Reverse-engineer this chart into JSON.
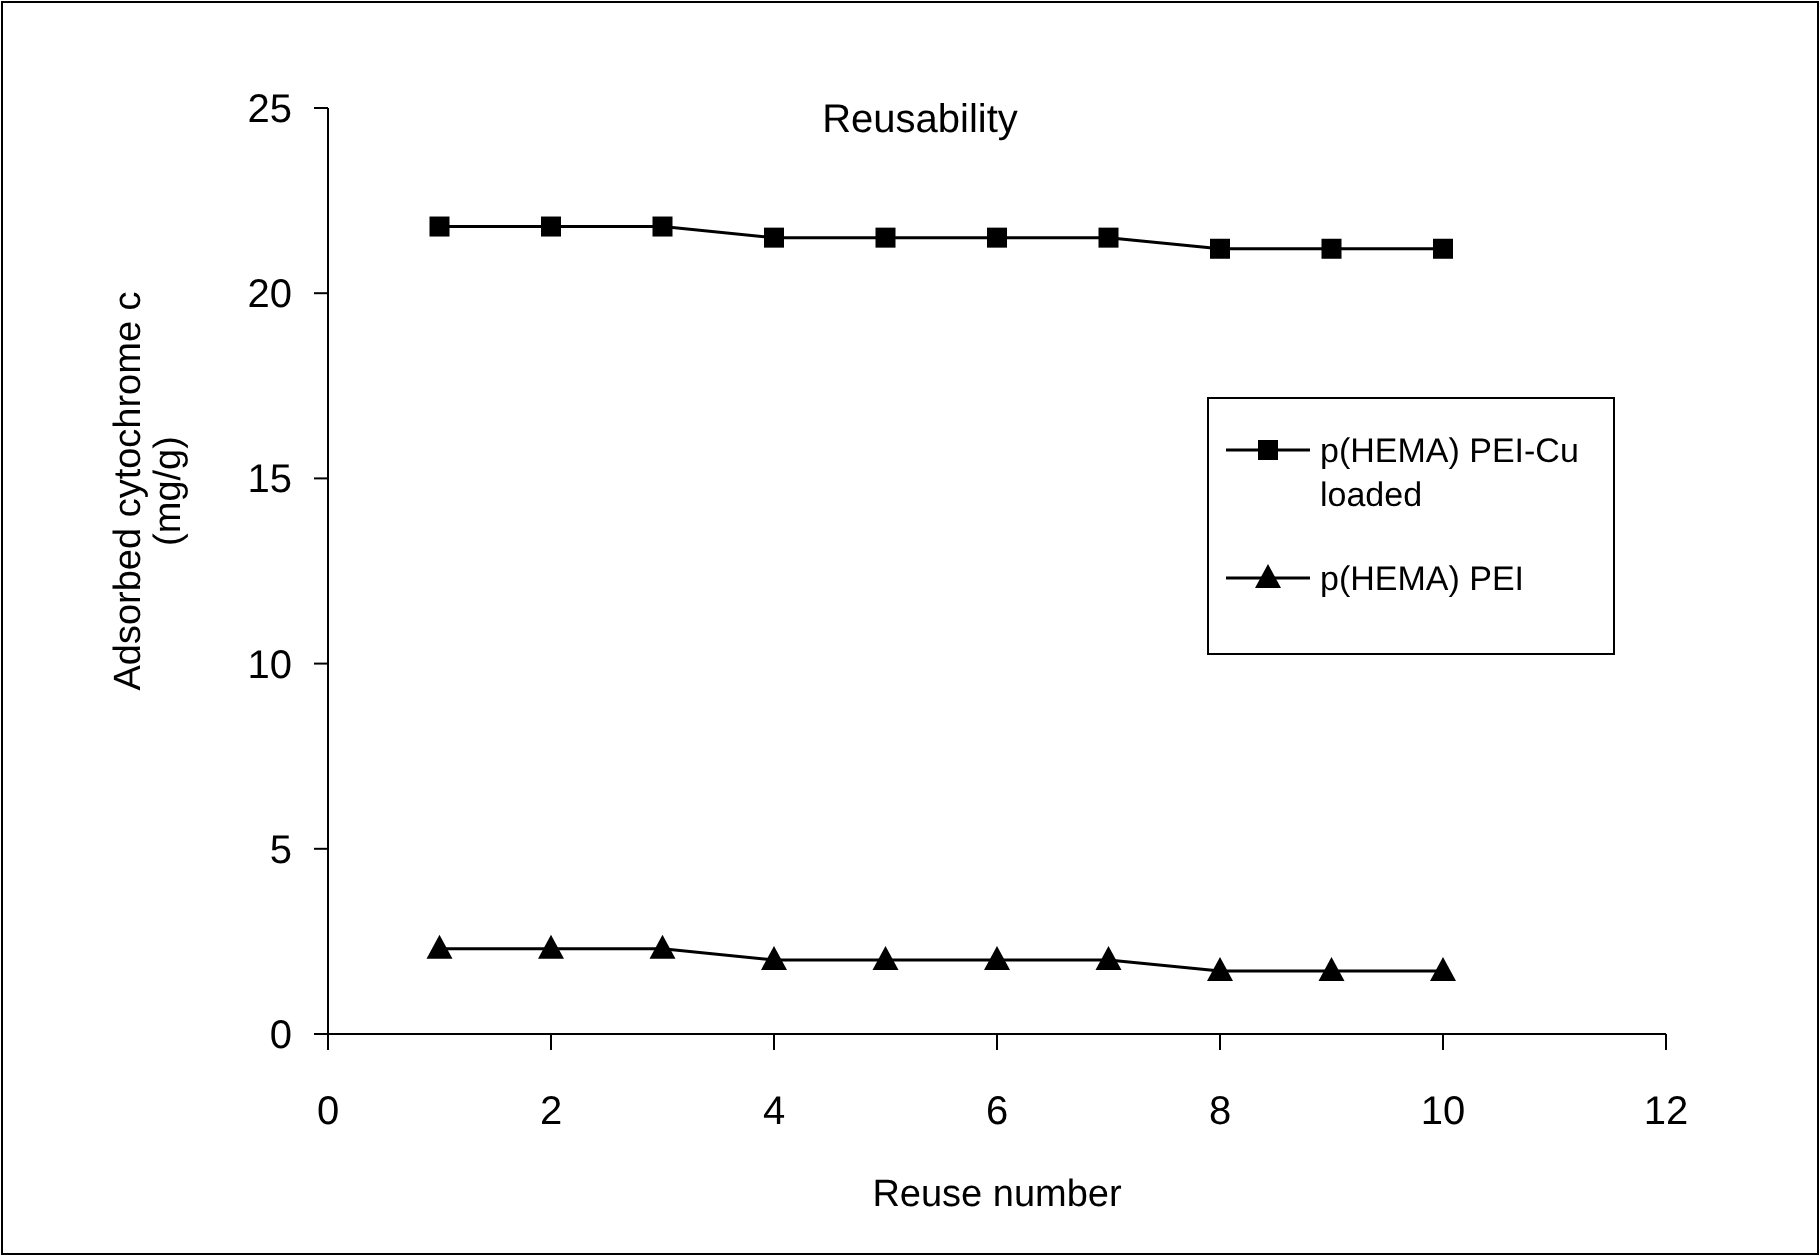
{
  "chart_data": {
    "type": "line",
    "title": "Reusability",
    "xlabel": "Reuse number",
    "ylabel": "Adsorbed cytochrome c (mg/g)",
    "x": [
      1,
      2,
      3,
      4,
      5,
      6,
      7,
      8,
      9,
      10
    ],
    "series": [
      {
        "name": "p(HEMA) PEI-Cu loaded",
        "color": "#000000",
        "marker": "square",
        "values": [
          21.8,
          21.8,
          21.8,
          21.5,
          21.5,
          21.5,
          21.5,
          21.2,
          21.2,
          21.2
        ]
      },
      {
        "name": "p(HEMA) PEI",
        "color": "#000000",
        "marker": "triangle",
        "values": [
          2.3,
          2.3,
          2.3,
          2.0,
          2.0,
          2.0,
          2.0,
          1.7,
          1.7,
          1.7
        ]
      }
    ],
    "xlim": [
      0,
      12
    ],
    "xticks": [
      0,
      2,
      4,
      6,
      8,
      10,
      12
    ],
    "ylim": [
      0,
      25
    ],
    "yticks": [
      0,
      5,
      10,
      15,
      20,
      25
    ],
    "grid": false,
    "legend": "right",
    "line_style": "solid"
  }
}
